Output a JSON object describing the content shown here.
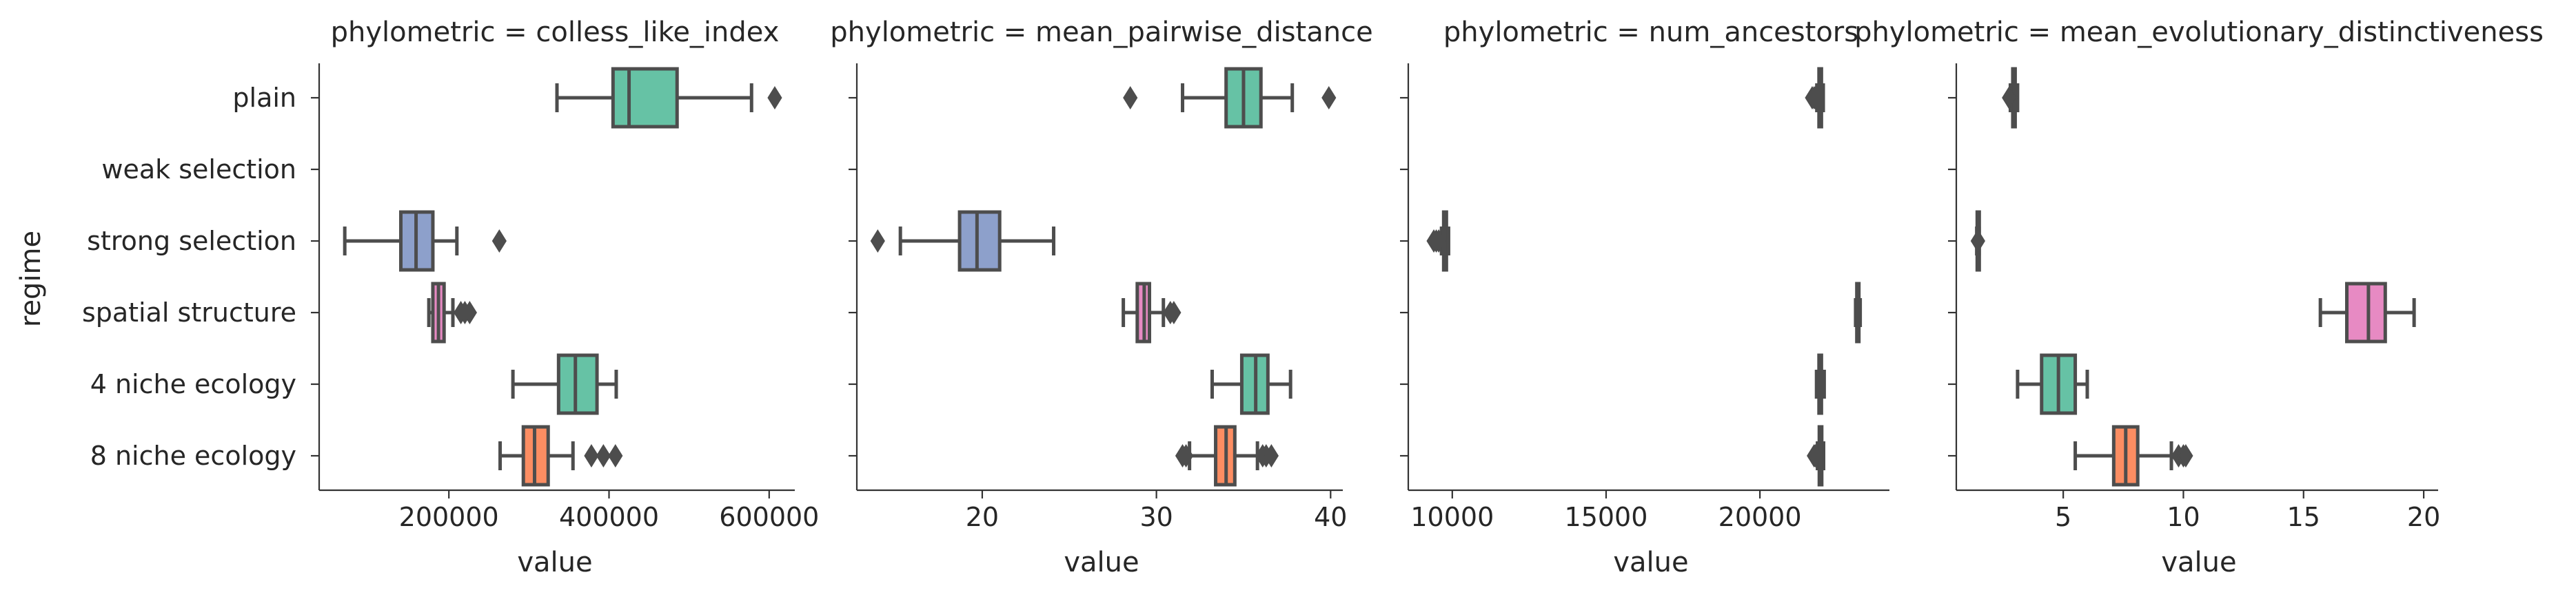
{
  "chart_data": {
    "type": "boxplot",
    "ylabel": "regime",
    "categories": [
      "plain",
      "weak selection",
      "strong selection",
      "spatial structure",
      "4 niche ecology",
      "8 niche ecology"
    ],
    "colors": {
      "plain": "#66c2a5",
      "weak selection": "#fc8d62",
      "strong selection": "#8da0cb",
      "spatial structure": "#e78ac3",
      "4 niche ecology": "#66c2a5",
      "8 niche ecology": "#fc8d62"
    },
    "panels": [
      {
        "title": "phylometric = colless_like_index",
        "xlabel": "value",
        "xlim": [
          38000,
          632000
        ],
        "xticks": [
          200000,
          400000,
          600000
        ],
        "xticklabels": [
          "200000",
          "400000",
          "600000"
        ],
        "boxes": [
          {
            "category": "plain",
            "whislo": 335000,
            "q1": 405000,
            "med": 425000,
            "q3": 485000,
            "whishi": 578000,
            "fliers": [
              607000
            ]
          },
          {
            "category": "strong selection",
            "whislo": 70000,
            "q1": 140000,
            "med": 159000,
            "q3": 180000,
            "whishi": 210000,
            "fliers": [
              263000
            ]
          },
          {
            "category": "spatial structure",
            "whislo": 175000,
            "q1": 180000,
            "med": 187000,
            "q3": 194000,
            "whishi": 205000,
            "fliers": [
              215000,
              220000,
              226000
            ]
          },
          {
            "category": "4 niche ecology",
            "whislo": 280000,
            "q1": 337000,
            "med": 358000,
            "q3": 385000,
            "whishi": 409000,
            "fliers": []
          },
          {
            "category": "8 niche ecology",
            "whislo": 264000,
            "q1": 293000,
            "med": 307000,
            "q3": 324000,
            "whishi": 355000,
            "fliers": [
              378000,
              393000,
              408000
            ]
          }
        ]
      },
      {
        "title": "phylometric = mean_pairwise_distance",
        "xlabel": "value",
        "xlim": [
          12.8,
          40.7
        ],
        "xticks": [
          20,
          30,
          40
        ],
        "xticklabels": [
          "20",
          "30",
          "40"
        ],
        "boxes": [
          {
            "category": "plain",
            "whislo": 31.5,
            "q1": 34.0,
            "med": 35.0,
            "q3": 36.0,
            "whishi": 37.8,
            "fliers": [
              28.5,
              39.9
            ]
          },
          {
            "category": "strong selection",
            "whislo": 15.3,
            "q1": 18.7,
            "med": 19.7,
            "q3": 21.0,
            "whishi": 24.1,
            "fliers": [
              14.0
            ]
          },
          {
            "category": "spatial structure",
            "whislo": 28.1,
            "q1": 28.9,
            "med": 29.3,
            "q3": 29.6,
            "whishi": 30.4,
            "fliers": [
              30.8,
              31.0
            ]
          },
          {
            "category": "4 niche ecology",
            "whislo": 33.2,
            "q1": 34.9,
            "med": 35.7,
            "q3": 36.4,
            "whishi": 37.7,
            "fliers": []
          },
          {
            "category": "8 niche ecology",
            "whislo": 31.9,
            "q1": 33.4,
            "med": 34.0,
            "q3": 34.5,
            "whishi": 35.8,
            "fliers": [
              31.5,
              31.7,
              36.1,
              36.3,
              36.6
            ]
          }
        ]
      },
      {
        "title": "phylometric = num_ancestors",
        "xlabel": "value",
        "xlim": [
          8570,
          24210
        ],
        "xticks": [
          10000,
          15000,
          20000
        ],
        "xticklabels": [
          "10000",
          "15000",
          "20000"
        ],
        "boxes": [
          {
            "category": "plain",
            "whislo": 21850,
            "q1": 21920,
            "med": 21960,
            "q3": 22000,
            "whishi": 22060,
            "fliers": [
              21700,
              21760,
              21800
            ]
          },
          {
            "category": "strong selection",
            "whislo": 9650,
            "q1": 9720,
            "med": 9760,
            "q3": 9810,
            "whishi": 9880,
            "fliers": [
              9400,
              9480,
              9560
            ]
          },
          {
            "category": "spatial structure",
            "whislo": 23110,
            "q1": 23150,
            "med": 23180,
            "q3": 23210,
            "whishi": 23260,
            "fliers": []
          },
          {
            "category": "4 niche ecology",
            "whislo": 21840,
            "q1": 21920,
            "med": 21960,
            "q3": 22000,
            "whishi": 22090,
            "fliers": []
          },
          {
            "category": "8 niche ecology",
            "whislo": 21870,
            "q1": 21930,
            "med": 21970,
            "q3": 22010,
            "whishi": 22070,
            "fliers": [
              21760,
              21800
            ]
          }
        ]
      },
      {
        "title": "phylometric = mean_evolutionary_distinctiveness",
        "xlabel": "value",
        "xlim": [
          0.55,
          20.6
        ],
        "xticks": [
          5,
          10,
          15,
          20
        ],
        "xticklabels": [
          "5",
          "10",
          "15",
          "20"
        ],
        "boxes": [
          {
            "category": "plain",
            "whislo": 2.8,
            "q1": 2.9,
            "med": 2.95,
            "q3": 3.0,
            "whishi": 3.1,
            "fliers": [
              2.75
            ]
          },
          {
            "category": "strong selection",
            "whislo": 1.4,
            "q1": 1.42,
            "med": 1.45,
            "q3": 1.48,
            "whishi": 1.5,
            "fliers": [
              1.45
            ]
          },
          {
            "category": "spatial structure",
            "whislo": 15.7,
            "q1": 16.8,
            "med": 17.7,
            "q3": 18.4,
            "whishi": 19.6,
            "fliers": []
          },
          {
            "category": "4 niche ecology",
            "whislo": 3.1,
            "q1": 4.1,
            "med": 4.8,
            "q3": 5.5,
            "whishi": 6.0,
            "fliers": []
          },
          {
            "category": "8 niche ecology",
            "whislo": 5.5,
            "q1": 7.1,
            "med": 7.6,
            "q3": 8.1,
            "whishi": 9.5,
            "fliers": [
              9.8,
              10.0,
              10.1
            ]
          }
        ]
      }
    ]
  }
}
